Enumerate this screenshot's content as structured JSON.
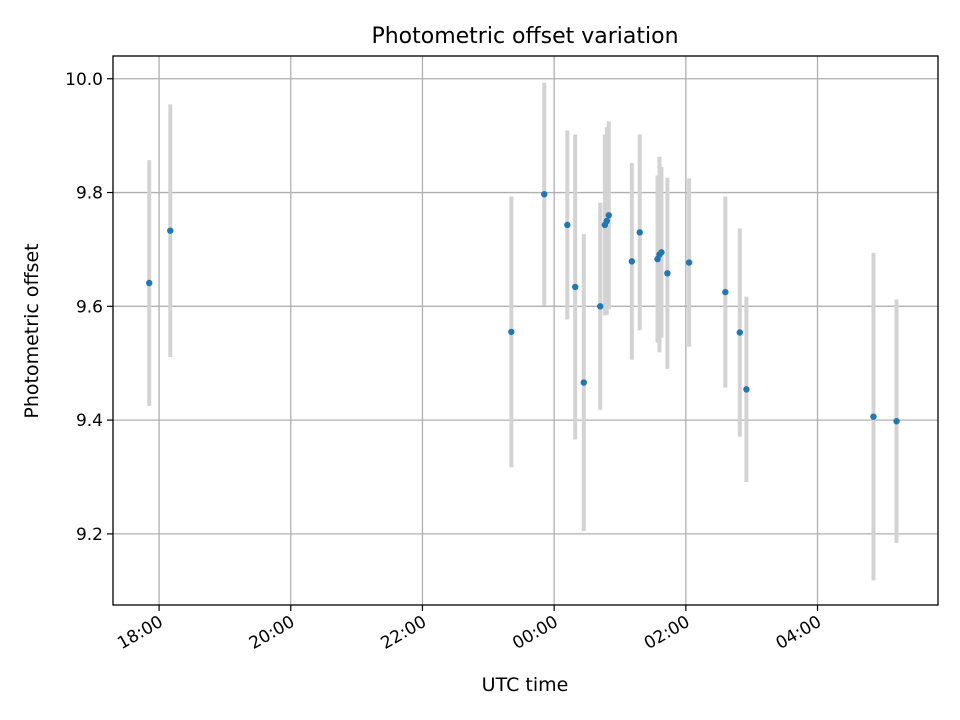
{
  "chart_data": {
    "type": "scatter",
    "title": "Photometric offset variation",
    "xlabel": "UTC time",
    "ylabel": "Photometric offset",
    "x_unit": "hours after 17:00 UTC (day 0)",
    "xlim": [
      17.3,
      29.83
    ],
    "ylim": [
      9.075,
      10.04
    ],
    "x_ticks": [
      {
        "value": 18,
        "label": "18:00"
      },
      {
        "value": 20,
        "label": "20:00"
      },
      {
        "value": 22,
        "label": "22:00"
      },
      {
        "value": 24,
        "label": "00:00"
      },
      {
        "value": 26,
        "label": "02:00"
      },
      {
        "value": 28,
        "label": "04:00"
      }
    ],
    "y_ticks": [
      {
        "value": 9.2,
        "label": "9.2"
      },
      {
        "value": 9.4,
        "label": "9.4"
      },
      {
        "value": 9.6,
        "label": "9.6"
      },
      {
        "value": 9.8,
        "label": "9.8"
      },
      {
        "value": 10.0,
        "label": "10.0"
      }
    ],
    "grid": true,
    "point_color": "#1f77b4",
    "errorbar_color": "#d3d3d3",
    "points": [
      {
        "x": 17.85,
        "y": 9.641,
        "err": 0.216
      },
      {
        "x": 18.17,
        "y": 9.733,
        "err": 0.222
      },
      {
        "x": 23.35,
        "y": 9.555,
        "err": 0.238
      },
      {
        "x": 23.85,
        "y": 9.797,
        "err": 0.196
      },
      {
        "x": 24.2,
        "y": 9.743,
        "err": 0.166
      },
      {
        "x": 24.32,
        "y": 9.634,
        "err": 0.268
      },
      {
        "x": 24.45,
        "y": 9.466,
        "err": 0.261
      },
      {
        "x": 24.7,
        "y": 9.6,
        "err": 0.182
      },
      {
        "x": 24.77,
        "y": 9.743,
        "err": 0.159
      },
      {
        "x": 24.8,
        "y": 9.75,
        "err": 0.165
      },
      {
        "x": 24.83,
        "y": 9.76,
        "err": 0.165
      },
      {
        "x": 25.18,
        "y": 9.679,
        "err": 0.173
      },
      {
        "x": 25.3,
        "y": 9.73,
        "err": 0.172
      },
      {
        "x": 25.57,
        "y": 9.683,
        "err": 0.147
      },
      {
        "x": 25.6,
        "y": 9.691,
        "err": 0.172
      },
      {
        "x": 25.63,
        "y": 9.695,
        "err": 0.15
      },
      {
        "x": 25.72,
        "y": 9.658,
        "err": 0.168
      },
      {
        "x": 26.05,
        "y": 9.677,
        "err": 0.148
      },
      {
        "x": 26.6,
        "y": 9.625,
        "err": 0.168
      },
      {
        "x": 26.82,
        "y": 9.554,
        "err": 0.183
      },
      {
        "x": 26.92,
        "y": 9.454,
        "err": 0.163
      },
      {
        "x": 28.85,
        "y": 9.406,
        "err": 0.288
      },
      {
        "x": 29.2,
        "y": 9.398,
        "err": 0.214
      }
    ]
  }
}
